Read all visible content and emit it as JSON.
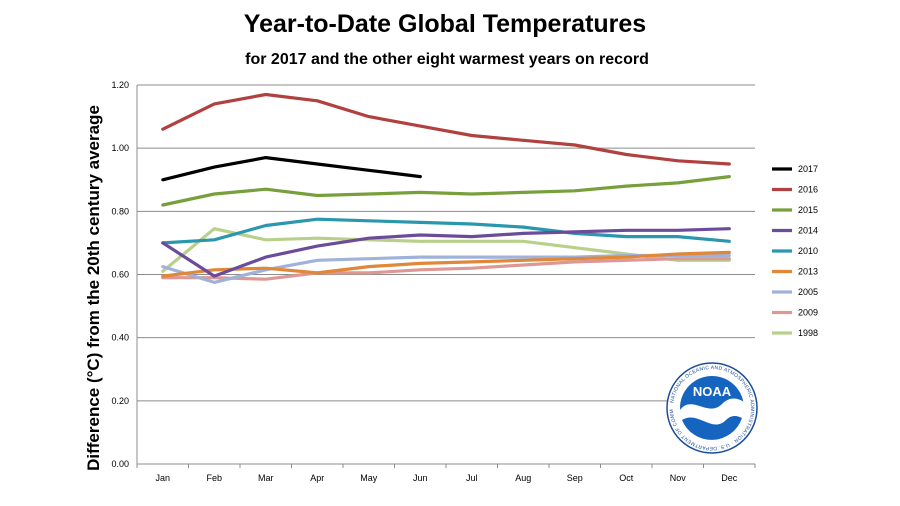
{
  "title": "Year-to-Date Global Temperatures",
  "subtitle": "for 2017 and the other eight warmest years on record",
  "logo": {
    "name": "NOAA",
    "ring_text": "NATIONAL OCEANIC AND ATMOSPHERIC ADMINISTRATION · U.S. DEPARTMENT OF COMMERCE"
  },
  "chart_data": {
    "type": "line",
    "title": "Year-to-Date Global Temperatures",
    "subtitle": "for 2017 and the other eight warmest years on record",
    "xlabel": "",
    "ylabel": "Difference (°C) from the 20th century average",
    "categories": [
      "Jan",
      "Feb",
      "Mar",
      "Apr",
      "May",
      "Jun",
      "Jul",
      "Aug",
      "Sep",
      "Oct",
      "Nov",
      "Dec"
    ],
    "yticks": [
      "0.00",
      "0.20",
      "0.40",
      "0.60",
      "0.80",
      "1.00",
      "1.20"
    ],
    "ylim": [
      0,
      1.2
    ],
    "grid": true,
    "legend_position": "right",
    "series": [
      {
        "name": "2017",
        "color": "#000000",
        "values": [
          0.9,
          0.94,
          0.97,
          0.95,
          0.93,
          0.91,
          null,
          null,
          null,
          null,
          null,
          null
        ]
      },
      {
        "name": "2016",
        "color": "#b0413e",
        "values": [
          1.06,
          1.14,
          1.17,
          1.15,
          1.1,
          1.07,
          1.04,
          1.025,
          1.01,
          0.98,
          0.96,
          0.95
        ]
      },
      {
        "name": "2015",
        "color": "#77a03c",
        "values": [
          0.82,
          0.855,
          0.87,
          0.85,
          0.855,
          0.86,
          0.855,
          0.86,
          0.865,
          0.88,
          0.89,
          0.91
        ]
      },
      {
        "name": "2014",
        "color": "#6b4c9a",
        "values": [
          0.7,
          0.595,
          0.655,
          0.69,
          0.715,
          0.725,
          0.72,
          0.73,
          0.735,
          0.74,
          0.74,
          0.745
        ]
      },
      {
        "name": "2010",
        "color": "#2a97ae",
        "values": [
          0.7,
          0.71,
          0.755,
          0.775,
          0.77,
          0.765,
          0.76,
          0.75,
          0.73,
          0.72,
          0.72,
          0.705
        ]
      },
      {
        "name": "2013",
        "color": "#e0873a",
        "values": [
          0.595,
          0.615,
          0.62,
          0.605,
          0.625,
          0.635,
          0.64,
          0.645,
          0.65,
          0.655,
          0.665,
          0.67
        ]
      },
      {
        "name": "2005",
        "color": "#9fb2d8",
        "values": [
          0.625,
          0.575,
          0.615,
          0.645,
          0.65,
          0.655,
          0.655,
          0.655,
          0.655,
          0.66,
          0.66,
          0.66
        ]
      },
      {
        "name": "2009",
        "color": "#dd9894",
        "values": [
          0.59,
          0.59,
          0.585,
          0.605,
          0.605,
          0.615,
          0.62,
          0.63,
          0.64,
          0.645,
          0.65,
          0.65
        ]
      },
      {
        "name": "1998",
        "color": "#b8d08a",
        "values": [
          0.61,
          0.745,
          0.71,
          0.715,
          0.71,
          0.705,
          0.705,
          0.705,
          0.685,
          0.665,
          0.645,
          0.645
        ]
      }
    ]
  }
}
